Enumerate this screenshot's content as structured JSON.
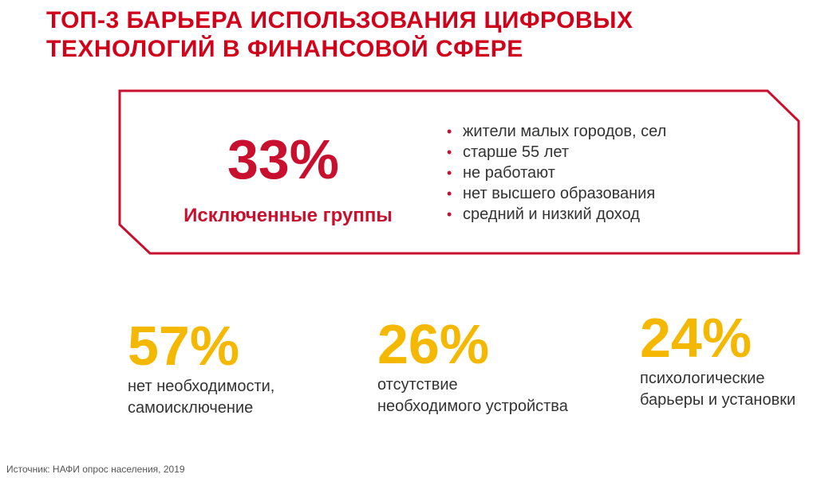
{
  "title": {
    "line1": "ТОП-3 БАРЬЕРА ИСПОЛЬЗОВАНИЯ ЦИФРОВЫХ",
    "line2": "ТЕХНОЛОГИЙ В ФИНАНСОВОЙ СФЕРЕ"
  },
  "callout": {
    "percent": "33%",
    "label": "Исключенные группы",
    "bullets": [
      "жители малых городов, сел",
      "старше 55 лет",
      "не работают",
      "нет высшего образования",
      "средний и низкий доход"
    ]
  },
  "stats": [
    {
      "percent": "57%",
      "description": "нет необходимости,\nсамоисключение"
    },
    {
      "percent": "26%",
      "description": "отсутствие\nнеобходимого устройства"
    },
    {
      "percent": "24%",
      "description": "психологические\nбарьеры и установки"
    }
  ],
  "source": "Источник: НАФИ опрос населения, 2019",
  "colors": {
    "title": "#d0021b",
    "accent_red": "#c8102e",
    "accent_yellow": "#f5b800",
    "text": "#333333"
  }
}
